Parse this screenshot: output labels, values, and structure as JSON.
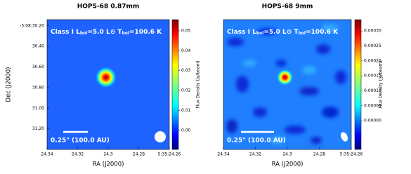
{
  "chart_data": [
    {
      "type": "image",
      "title": "HOPS-68 0.87mm",
      "xlabel": "RA (J2000)",
      "ylabel": "Dec (J2000)",
      "colorbar_label": "Flux Density (Jy/beam)",
      "annotation": [
        "Class I  ",
        "L",
        "bol",
        "=5.0 L",
        "⊙",
        "  T",
        "bol",
        "=100.6 K"
      ],
      "scalebar_label": "0.25\" (100.0 AU)",
      "xlim": [
        24.34,
        24.26
      ],
      "xticks": [
        24.34,
        24.32,
        24.3,
        24.28,
        {
          "value": 24.26,
          "label": "5:35:24.26"
        }
      ],
      "ylim": [
        31.4,
        30.14
      ],
      "yticks": [
        {
          "value": 30.2,
          "label": "-5:08:30.20"
        },
        {
          "value": 30.4,
          "label": "30.40"
        },
        {
          "value": 30.6,
          "label": "30.60"
        },
        {
          "value": 30.8,
          "label": "30.80"
        },
        {
          "value": 31.0,
          "label": "31.00"
        },
        {
          "value": 31.2,
          "label": "31.20"
        }
      ],
      "clim": [
        -0.0095,
        0.0556
      ],
      "cticks": [
        {
          "value": 0,
          "label": "0.00"
        },
        {
          "value": 0.01,
          "label": "0.01"
        },
        {
          "value": 0.02,
          "label": "0.02"
        },
        {
          "value": 0.03,
          "label": "0.03"
        },
        {
          "value": 0.04,
          "label": "0.04"
        },
        {
          "value": 0.05,
          "label": "0.05"
        }
      ],
      "source": {
        "ra": 24.3015,
        "dec": 30.7
      }
    },
    {
      "type": "image",
      "title": "HOPS-68 9mm",
      "xlabel": "RA (J2000)",
      "colorbar_label": "Flux Density (Jy/beam)",
      "annotation": [
        "Class I  ",
        "L",
        "bol",
        "=5.0 L",
        "⊙",
        "  T",
        "bol",
        "=100.6 K"
      ],
      "scalebar_label": "0.25\" (100.0 AU)",
      "xlim": [
        24.34,
        24.26
      ],
      "xticks": [
        24.34,
        24.32,
        24.3,
        24.28,
        {
          "value": 24.26,
          "label": "5:35:24.26"
        }
      ],
      "ylim": [
        31.4,
        30.14
      ],
      "clim": [
        -9.6e-05,
        0.000338
      ],
      "cticks": [
        {
          "value": 0,
          "label": "0.00000"
        },
        {
          "value": 5e-05,
          "label": "0.00005"
        },
        {
          "value": 0.0001,
          "label": "0.00010"
        },
        {
          "value": 0.00015,
          "label": "0.00015"
        },
        {
          "value": 0.0002,
          "label": "0.00020"
        },
        {
          "value": 0.00025,
          "label": "0.00025"
        },
        {
          "value": 0.0003,
          "label": "0.00030"
        }
      ],
      "source": {
        "ra": 24.3015,
        "dec": 30.7
      }
    }
  ]
}
